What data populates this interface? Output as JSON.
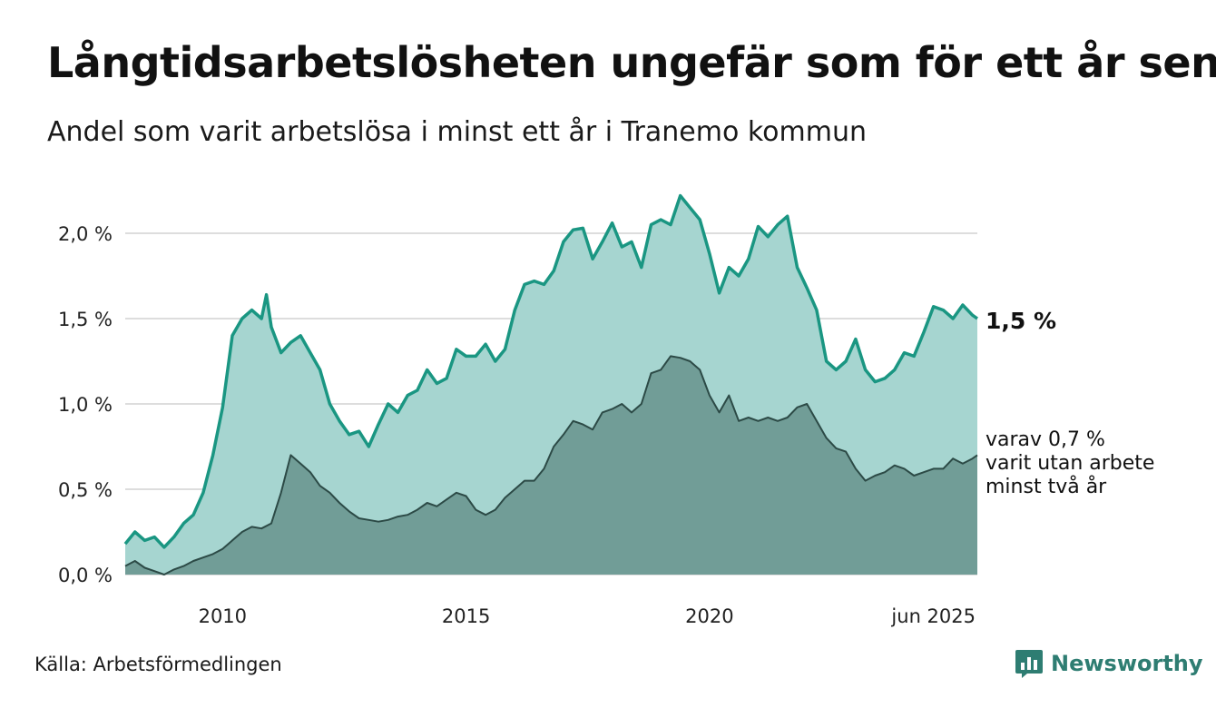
{
  "title": "Långtidsarbetslösheten ungefär som för ett år sen",
  "subtitle": "Andel som varit arbetslösa i minst ett år i Tranemo kommun",
  "source": "Källa: Arbetsförmedlingen",
  "logo_text": "Newsworthy",
  "logo_icon": "bar-chart-bubble-icon",
  "colors": {
    "outer_fill": "#a6d5d0",
    "outer_line": "#1a9682",
    "inner_fill": "#719d97",
    "inner_line": "#2c4a46",
    "grid": "#dddddd",
    "logo": "#2e7d72"
  },
  "chart_data": {
    "type": "area",
    "xlabel": "",
    "ylabel": "",
    "x_ticks": [
      {
        "x": 2010,
        "label": "2010"
      },
      {
        "x": 2015,
        "label": "2015"
      },
      {
        "x": 2020,
        "label": "2020"
      },
      {
        "x": 2025.5,
        "label": "jun 2025"
      }
    ],
    "y_ticks": [
      {
        "y": 0.0,
        "label": "0,0 %"
      },
      {
        "y": 0.5,
        "label": "0,5 %"
      },
      {
        "y": 1.0,
        "label": "1,0 %"
      },
      {
        "y": 1.5,
        "label": "1,5 %"
      },
      {
        "y": 2.0,
        "label": "2,0 %"
      }
    ],
    "xlim": [
      2008.0,
      2025.5
    ],
    "ylim": [
      0,
      2.5
    ],
    "grid": true,
    "series": [
      {
        "x": [
          2008.0,
          2008.2,
          2008.4,
          2008.6,
          2008.8,
          2009.0,
          2009.2,
          2009.4,
          2009.6,
          2009.8,
          2010.0,
          2010.2,
          2010.4,
          2010.6,
          2010.8,
          2010.9,
          2011.0,
          2011.2,
          2011.4,
          2011.6,
          2011.8,
          2012.0,
          2012.2,
          2012.4,
          2012.6,
          2012.8,
          2013.0,
          2013.2,
          2013.4,
          2013.6,
          2013.8,
          2014.0,
          2014.2,
          2014.4,
          2014.6,
          2014.8,
          2015.0,
          2015.2,
          2015.4,
          2015.6,
          2015.8,
          2016.0,
          2016.2,
          2016.4,
          2016.6,
          2016.8,
          2017.0,
          2017.2,
          2017.4,
          2017.6,
          2017.8,
          2018.0,
          2018.2,
          2018.4,
          2018.6,
          2018.8,
          2019.0,
          2019.2,
          2019.4,
          2019.6,
          2019.8,
          2020.0,
          2020.2,
          2020.4,
          2020.6,
          2020.8,
          2021.0,
          2021.2,
          2021.4,
          2021.6,
          2021.8,
          2022.0,
          2022.2,
          2022.4,
          2022.6,
          2022.8,
          2023.0,
          2023.2,
          2023.4,
          2023.6,
          2023.8,
          2024.0,
          2024.2,
          2024.4,
          2024.6,
          2024.8,
          2025.0,
          2025.2,
          2025.4,
          2025.5
        ],
        "values": [
          0.18,
          0.25,
          0.2,
          0.22,
          0.16,
          0.22,
          0.3,
          0.35,
          0.48,
          0.7,
          0.98,
          1.4,
          1.5,
          1.55,
          1.5,
          1.64,
          1.45,
          1.3,
          1.36,
          1.4,
          1.3,
          1.2,
          1.0,
          0.9,
          0.82,
          0.84,
          0.75,
          0.88,
          1.0,
          0.95,
          1.05,
          1.08,
          1.2,
          1.12,
          1.15,
          1.32,
          1.28,
          1.28,
          1.35,
          1.25,
          1.32,
          1.55,
          1.7,
          1.72,
          1.7,
          1.78,
          1.95,
          2.02,
          2.03,
          1.85,
          1.95,
          2.06,
          1.92,
          1.95,
          1.8,
          2.05,
          2.08,
          2.05,
          2.22,
          2.15,
          2.08,
          1.88,
          1.65,
          1.8,
          1.75,
          1.85,
          2.04,
          1.98,
          2.05,
          2.1,
          1.8,
          1.68,
          1.55,
          1.25,
          1.2,
          1.25,
          1.38,
          1.2,
          1.13,
          1.15,
          1.2,
          1.3,
          1.28,
          1.42,
          1.57,
          1.55,
          1.5,
          1.58,
          1.52,
          1.5
        ]
      },
      {
        "x": [
          2008.0,
          2008.2,
          2008.4,
          2008.6,
          2008.8,
          2009.0,
          2009.2,
          2009.4,
          2009.6,
          2009.8,
          2010.0,
          2010.2,
          2010.4,
          2010.6,
          2010.8,
          2011.0,
          2011.2,
          2011.4,
          2011.6,
          2011.8,
          2012.0,
          2012.2,
          2012.4,
          2012.6,
          2012.8,
          2013.0,
          2013.2,
          2013.4,
          2013.6,
          2013.8,
          2014.0,
          2014.2,
          2014.4,
          2014.6,
          2014.8,
          2015.0,
          2015.2,
          2015.4,
          2015.6,
          2015.8,
          2016.0,
          2016.2,
          2016.4,
          2016.6,
          2016.8,
          2017.0,
          2017.2,
          2017.4,
          2017.6,
          2017.8,
          2018.0,
          2018.2,
          2018.4,
          2018.6,
          2018.8,
          2019.0,
          2019.2,
          2019.4,
          2019.6,
          2019.8,
          2020.0,
          2020.2,
          2020.4,
          2020.6,
          2020.8,
          2021.0,
          2021.2,
          2021.4,
          2021.6,
          2021.8,
          2022.0,
          2022.2,
          2022.4,
          2022.6,
          2022.8,
          2023.0,
          2023.2,
          2023.4,
          2023.6,
          2023.8,
          2024.0,
          2024.2,
          2024.4,
          2024.6,
          2024.8,
          2025.0,
          2025.2,
          2025.4,
          2025.5
        ],
        "values": [
          0.05,
          0.08,
          0.04,
          0.02,
          0.0,
          0.03,
          0.05,
          0.08,
          0.1,
          0.12,
          0.15,
          0.2,
          0.25,
          0.28,
          0.27,
          0.3,
          0.48,
          0.7,
          0.65,
          0.6,
          0.52,
          0.48,
          0.42,
          0.37,
          0.33,
          0.32,
          0.31,
          0.32,
          0.34,
          0.35,
          0.38,
          0.42,
          0.4,
          0.44,
          0.48,
          0.46,
          0.38,
          0.35,
          0.38,
          0.45,
          0.5,
          0.55,
          0.55,
          0.62,
          0.75,
          0.82,
          0.9,
          0.88,
          0.85,
          0.95,
          0.97,
          1.0,
          0.95,
          1.0,
          1.18,
          1.2,
          1.28,
          1.27,
          1.25,
          1.2,
          1.05,
          0.95,
          1.05,
          0.9,
          0.92,
          0.9,
          0.92,
          0.9,
          0.92,
          0.98,
          1.0,
          0.9,
          0.8,
          0.74,
          0.72,
          0.62,
          0.55,
          0.58,
          0.6,
          0.64,
          0.62,
          0.58,
          0.6,
          0.62,
          0.62,
          0.68,
          0.65,
          0.68,
          0.7
        ]
      }
    ]
  },
  "annotations": {
    "outer_end_label": "1,5 %",
    "inner_end_label": [
      "varav 0,7 %",
      "varit utan arbete",
      "minst två år"
    ]
  }
}
